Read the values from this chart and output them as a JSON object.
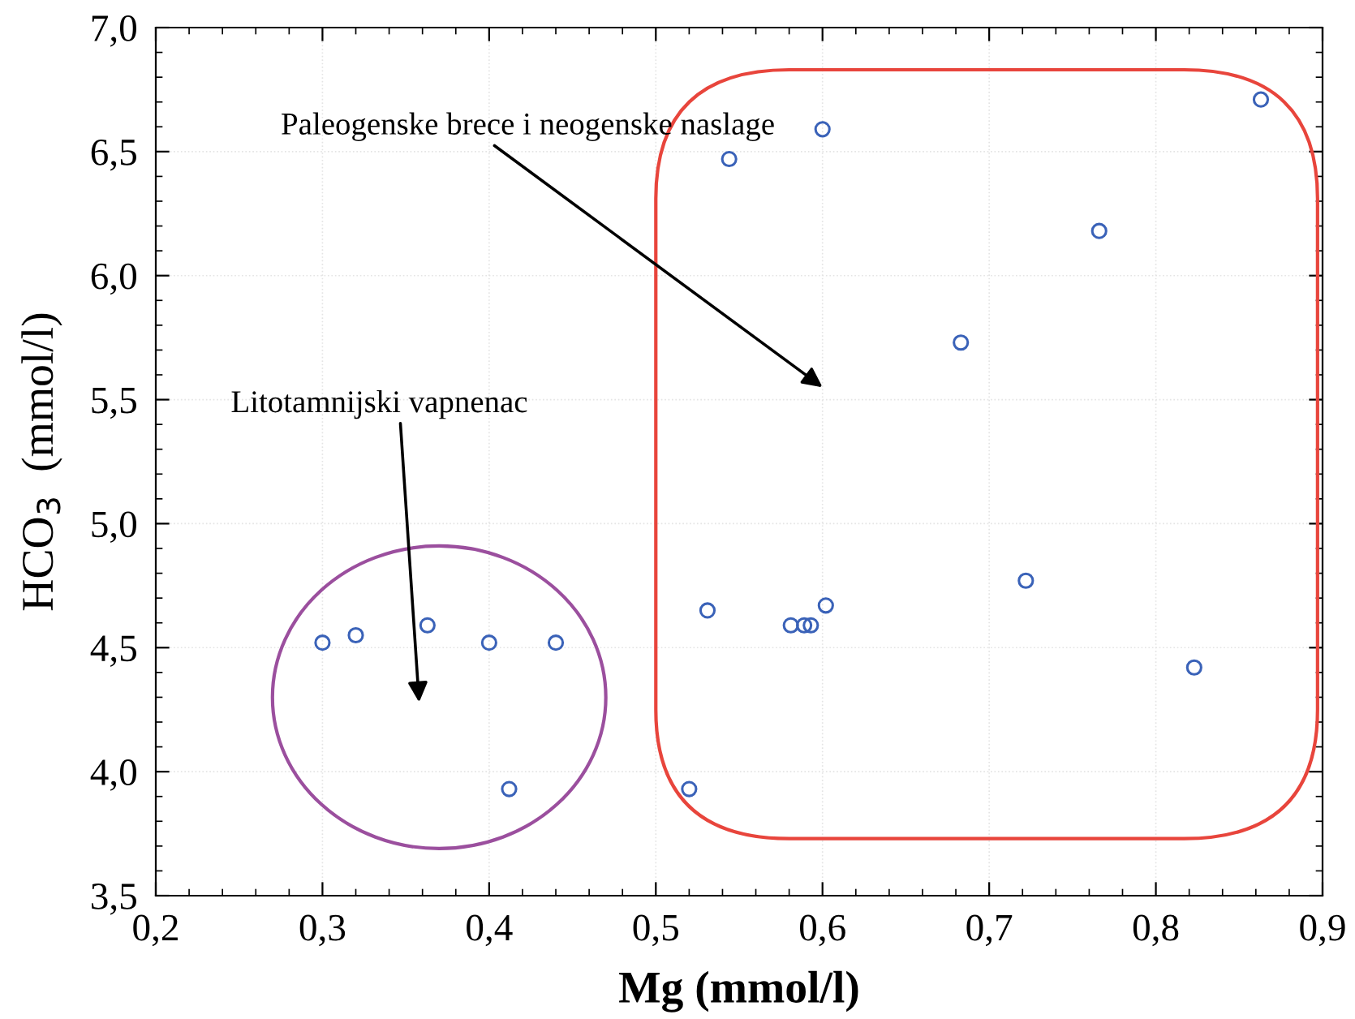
{
  "chart_data": {
    "type": "scatter",
    "xlabel": "Mg (mmol/l)",
    "ylabel": "HCO$_{3}$  (mmol/l)",
    "x": [
      0.3,
      0.32,
      0.363,
      0.4,
      0.44,
      0.412,
      0.52,
      0.531,
      0.581,
      0.589,
      0.593,
      0.602,
      0.544,
      0.6,
      0.683,
      0.722,
      0.766,
      0.823,
      0.863
    ],
    "values": [
      4.52,
      4.55,
      4.59,
      4.52,
      4.52,
      3.93,
      3.93,
      4.65,
      4.59,
      4.59,
      4.59,
      4.67,
      6.47,
      6.59,
      5.73,
      4.77,
      6.18,
      4.42,
      6.71
    ],
    "color": "#3a62b8",
    "marker": "circle",
    "grid": true,
    "xlim": [
      0.2,
      0.9
    ],
    "ylim": [
      3.5,
      7.0
    ],
    "xticks": [
      {
        "value": 0.2,
        "label": "0,2"
      },
      {
        "value": 0.3,
        "label": "0,3"
      },
      {
        "value": 0.4,
        "label": "0,4"
      },
      {
        "value": 0.5,
        "label": "0,5"
      },
      {
        "value": 0.6,
        "label": "0,6"
      },
      {
        "value": 0.7,
        "label": "0,7"
      },
      {
        "value": 0.8,
        "label": "0,8"
      },
      {
        "value": 0.9,
        "label": "0,9"
      }
    ],
    "yticks": [
      {
        "value": 3.5,
        "label": "3,5"
      },
      {
        "value": 4.0,
        "label": "4,0"
      },
      {
        "value": 4.5,
        "label": "4,5"
      },
      {
        "value": 5.0,
        "label": "5,0"
      },
      {
        "value": 5.5,
        "label": "5,5"
      },
      {
        "value": 6.0,
        "label": "6,0"
      },
      {
        "value": 6.5,
        "label": "6,5"
      },
      {
        "value": 7.0,
        "label": "7,0"
      }
    ],
    "annotations": [
      "Paleogenske brece i neogenske naslage",
      "Litotamnijski vapnenac"
    ]
  }
}
